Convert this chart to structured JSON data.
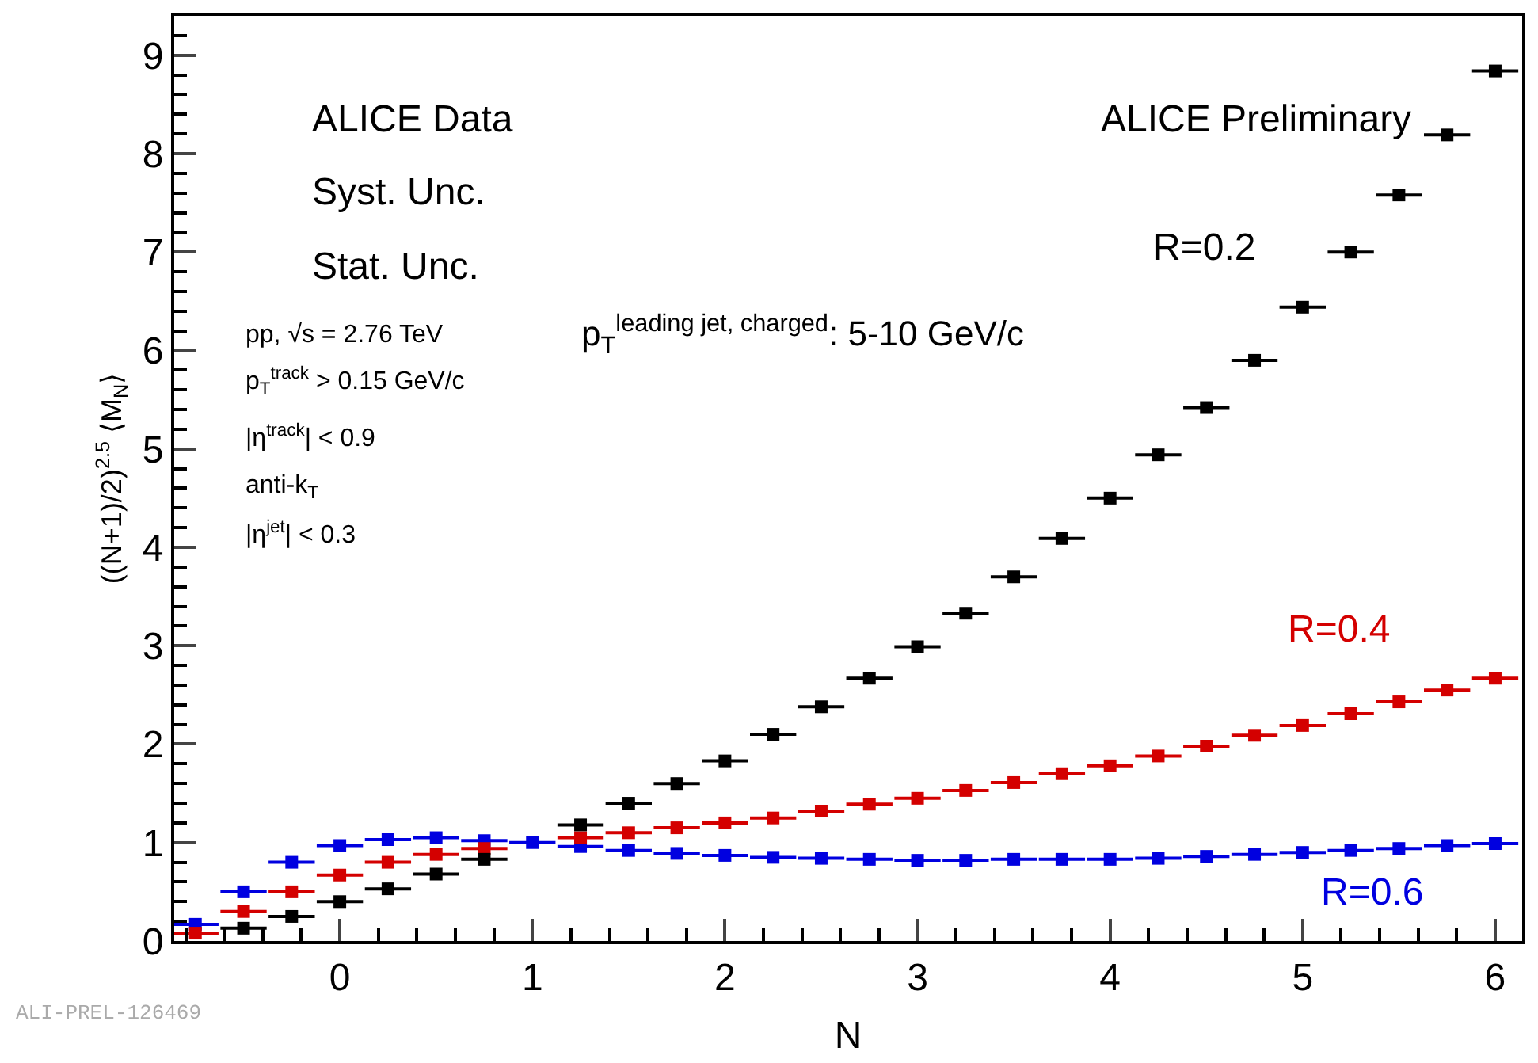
{
  "chart_data": {
    "type": "scatter",
    "xlabel": "N",
    "ylabel": "((N+1)/2)$^{2.5}$ ⟨M$_{N}$⟩",
    "x": [
      -0.75,
      -0.5,
      -0.25,
      0,
      0.25,
      0.5,
      0.75,
      1,
      1.25,
      1.5,
      1.75,
      2,
      2.25,
      2.5,
      2.75,
      3,
      3.25,
      3.5,
      3.75,
      4,
      4.25,
      4.5,
      4.75,
      5,
      5.25,
      5.5,
      5.75,
      6
    ],
    "series": [
      {
        "name": "R=0.2",
        "color": "#000000",
        "values": [
          null,
          0.13,
          0.25,
          0.4,
          0.53,
          0.68,
          0.83,
          null,
          1.18,
          1.4,
          1.6,
          1.83,
          2.1,
          2.38,
          2.67,
          2.99,
          3.33,
          3.7,
          4.09,
          4.5,
          4.94,
          5.42,
          5.9,
          6.44,
          7.0,
          7.58,
          8.19,
          8.84
        ],
        "xerrors": [
          null,
          0.12,
          0.12,
          0.12,
          0.12,
          0.12,
          0.12,
          null,
          0.12,
          0.12,
          0.12,
          0.12,
          0.12,
          0.12,
          0.12,
          0.12,
          0.12,
          0.12,
          0.12,
          0.12,
          0.12,
          0.12,
          0.12,
          0.12,
          0.12,
          0.12,
          0.12,
          0.12
        ]
      },
      {
        "name": "R=0.4",
        "color": "#d40000",
        "values": [
          0.08,
          0.3,
          0.5,
          0.67,
          0.8,
          0.88,
          0.94,
          null,
          1.05,
          1.1,
          1.15,
          1.2,
          1.25,
          1.32,
          1.39,
          1.45,
          1.53,
          1.61,
          1.7,
          1.78,
          1.88,
          1.98,
          2.09,
          2.19,
          2.31,
          2.43,
          2.55,
          2.67
        ],
        "xerrors": [
          0.12,
          0.12,
          0.12,
          0.12,
          0.12,
          0.12,
          0.12,
          null,
          0.12,
          0.12,
          0.12,
          0.12,
          0.12,
          0.12,
          0.12,
          0.12,
          0.12,
          0.12,
          0.12,
          0.12,
          0.12,
          0.12,
          0.12,
          0.12,
          0.12,
          0.12,
          0.12,
          0.12
        ]
      },
      {
        "name": "R=0.6",
        "color": "#0000e0",
        "values": [
          0.17,
          0.5,
          0.8,
          0.97,
          1.03,
          1.05,
          1.02,
          1.0,
          0.96,
          0.92,
          0.89,
          0.87,
          0.85,
          0.84,
          0.83,
          0.82,
          0.82,
          0.83,
          0.83,
          0.83,
          0.84,
          0.86,
          0.88,
          0.9,
          0.92,
          0.94,
          0.97,
          0.99
        ],
        "xerrors": [
          0.12,
          0.12,
          0.12,
          0.12,
          0.12,
          0.12,
          0.12,
          0.12,
          0.12,
          0.12,
          0.12,
          0.12,
          0.12,
          0.12,
          0.12,
          0.12,
          0.12,
          0.12,
          0.12,
          0.12,
          0.12,
          0.12,
          0.12,
          0.12,
          0.12,
          0.12,
          0.12,
          0.12
        ]
      }
    ],
    "xlim": [
      -0.86,
      6.14
    ],
    "ylim": [
      0,
      9.4
    ],
    "xticks": [
      0,
      1,
      2,
      3,
      4,
      5,
      6
    ],
    "yticks": [
      0,
      1,
      2,
      3,
      4,
      5,
      6,
      7,
      8,
      9
    ],
    "marker": "square",
    "legend": "right",
    "annotations": [
      "ALICE Data",
      "Syst. Unc.",
      "Stat. Unc.",
      "ALICE Preliminary",
      "pp, √s = 2.76 TeV",
      "p$_{T}$$^{track}$ > 0.15 GeV/c",
      "|η$^{track}$| < 0.9",
      "anti-k$_{T}$",
      "|η$^{jet}$| < 0.3",
      "p$_{T}$$^{leading jet, charged}$: 5-10 GeV/c",
      "ALI-PREL-126469"
    ]
  }
}
